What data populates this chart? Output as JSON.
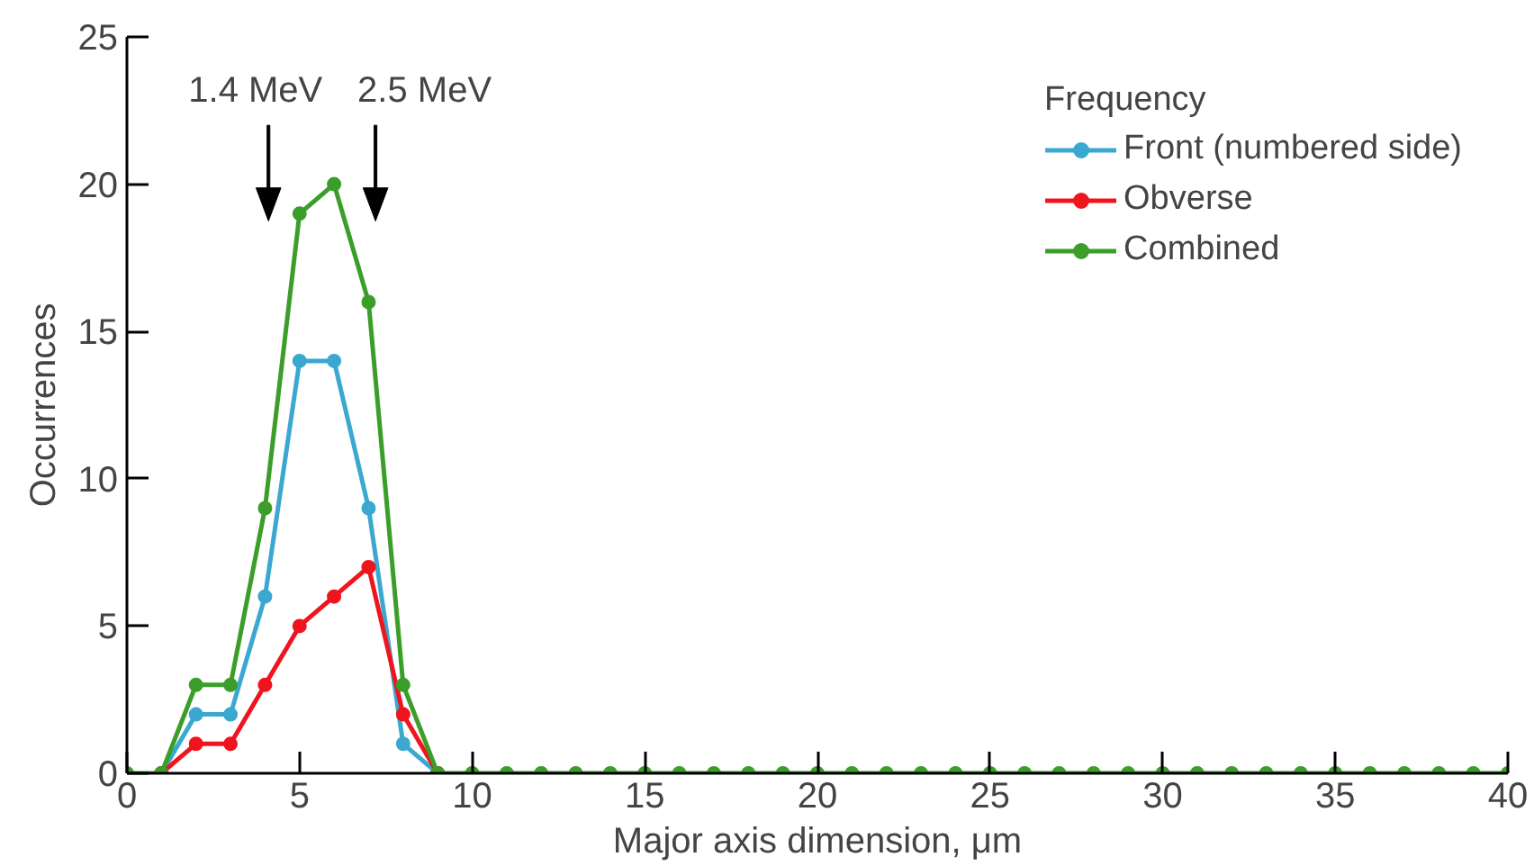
{
  "chart_data": {
    "type": "line",
    "xlabel": "Major axis dimension, μm",
    "ylabel": "Occurrences",
    "legend_title": "Frequency",
    "legend": "top right",
    "marker": "circle",
    "grid": false,
    "x": [
      0,
      1,
      2,
      3,
      4,
      5,
      6,
      7,
      8,
      9,
      10,
      11,
      12,
      13,
      14,
      15,
      16,
      17,
      18,
      19,
      20,
      21,
      22,
      23,
      24,
      25,
      26,
      27,
      28,
      29,
      30,
      31,
      32,
      33,
      34,
      35,
      36,
      37,
      38,
      39,
      40
    ],
    "series": [
      {
        "name": "Front (numbered side)",
        "color": "#3aa8d0",
        "values": [
          null,
          0,
          2,
          2,
          6,
          14,
          14,
          9,
          1,
          0,
          null,
          null,
          null,
          null,
          null,
          null,
          null,
          null,
          null,
          null,
          null,
          null,
          null,
          null,
          null,
          null,
          null,
          null,
          null,
          null,
          null,
          null,
          null,
          null,
          null,
          null,
          null,
          null,
          null,
          null,
          null
        ]
      },
      {
        "name": "Obverse",
        "color": "#f0141e",
        "values": [
          null,
          0,
          1,
          1,
          3,
          5,
          6,
          7,
          2,
          0,
          null,
          null,
          null,
          null,
          null,
          null,
          null,
          null,
          null,
          null,
          null,
          null,
          null,
          null,
          null,
          null,
          null,
          null,
          null,
          null,
          null,
          null,
          null,
          null,
          null,
          null,
          null,
          null,
          null,
          null,
          null
        ]
      },
      {
        "name": "Combined",
        "color": "#3c9e2a",
        "values": [
          0,
          0,
          3,
          3,
          9,
          19,
          20,
          16,
          3,
          0,
          0,
          0,
          0,
          0,
          0,
          0,
          0,
          0,
          0,
          0,
          0,
          0,
          0,
          0,
          0,
          0,
          0,
          0,
          0,
          0,
          0,
          0,
          0,
          0,
          0,
          0,
          0,
          0,
          0,
          0,
          0
        ]
      }
    ],
    "ref_lines": [
      {
        "axis": "x",
        "value": 4.1,
        "label": "1.4 MeV"
      },
      {
        "axis": "x",
        "value": 7.2,
        "label": "2.5 MeV"
      }
    ],
    "xlim": [
      0,
      40
    ],
    "xticks": [
      0,
      5,
      10,
      15,
      20,
      25,
      30,
      35,
      40
    ],
    "ylim": [
      0,
      25
    ],
    "yticks": [
      0,
      5,
      10,
      15,
      20,
      25
    ]
  }
}
